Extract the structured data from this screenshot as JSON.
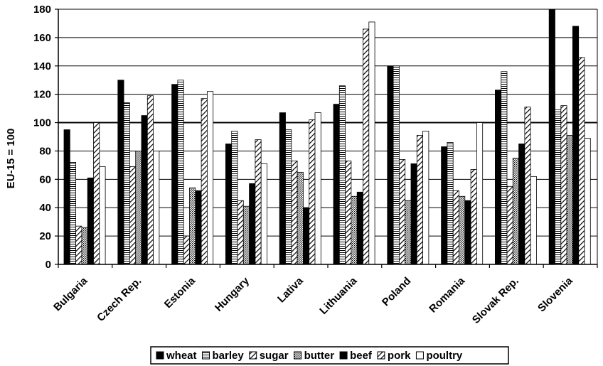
{
  "chart_data": {
    "type": "bar",
    "ylabel": "EU-15 = 100",
    "xlabel": "",
    "ylim": [
      0,
      180
    ],
    "yticks": [
      0,
      20,
      40,
      60,
      80,
      100,
      120,
      140,
      160,
      180
    ],
    "grid": true,
    "legend_position": "bottom",
    "categories": [
      "Bulgaria",
      "Czech Rep.",
      "Estonia",
      "Hungary",
      "Lativa",
      "Lithuania",
      "Poland",
      "Romania",
      "Slovak Rep.",
      "Slovenia"
    ],
    "series": [
      {
        "name": "wheat",
        "pattern": "solid",
        "values": [
          95,
          130,
          127,
          85,
          107,
          113,
          140,
          83,
          123,
          180
        ]
      },
      {
        "name": "barley",
        "pattern": "horizontal",
        "values": [
          72,
          114,
          130,
          94,
          95,
          126,
          140,
          86,
          136,
          109
        ]
      },
      {
        "name": "sugar",
        "pattern": "diagonal",
        "values": [
          27,
          69,
          20,
          45,
          73,
          73,
          74,
          52,
          55,
          112
        ]
      },
      {
        "name": "butter",
        "pattern": "dotted",
        "values": [
          26,
          80,
          54,
          41,
          65,
          48,
          45,
          48,
          75,
          91
        ]
      },
      {
        "name": "beef",
        "pattern": "solid",
        "values": [
          61,
          105,
          52,
          57,
          40,
          51,
          71,
          45,
          85,
          168
        ]
      },
      {
        "name": "pork",
        "pattern": "diagonal",
        "values": [
          100,
          119,
          117,
          88,
          102,
          166,
          91,
          67,
          111,
          146
        ]
      },
      {
        "name": "poultry",
        "pattern": "white",
        "values": [
          69,
          80,
          122,
          71,
          107,
          171,
          94,
          100,
          62,
          89
        ]
      }
    ]
  }
}
